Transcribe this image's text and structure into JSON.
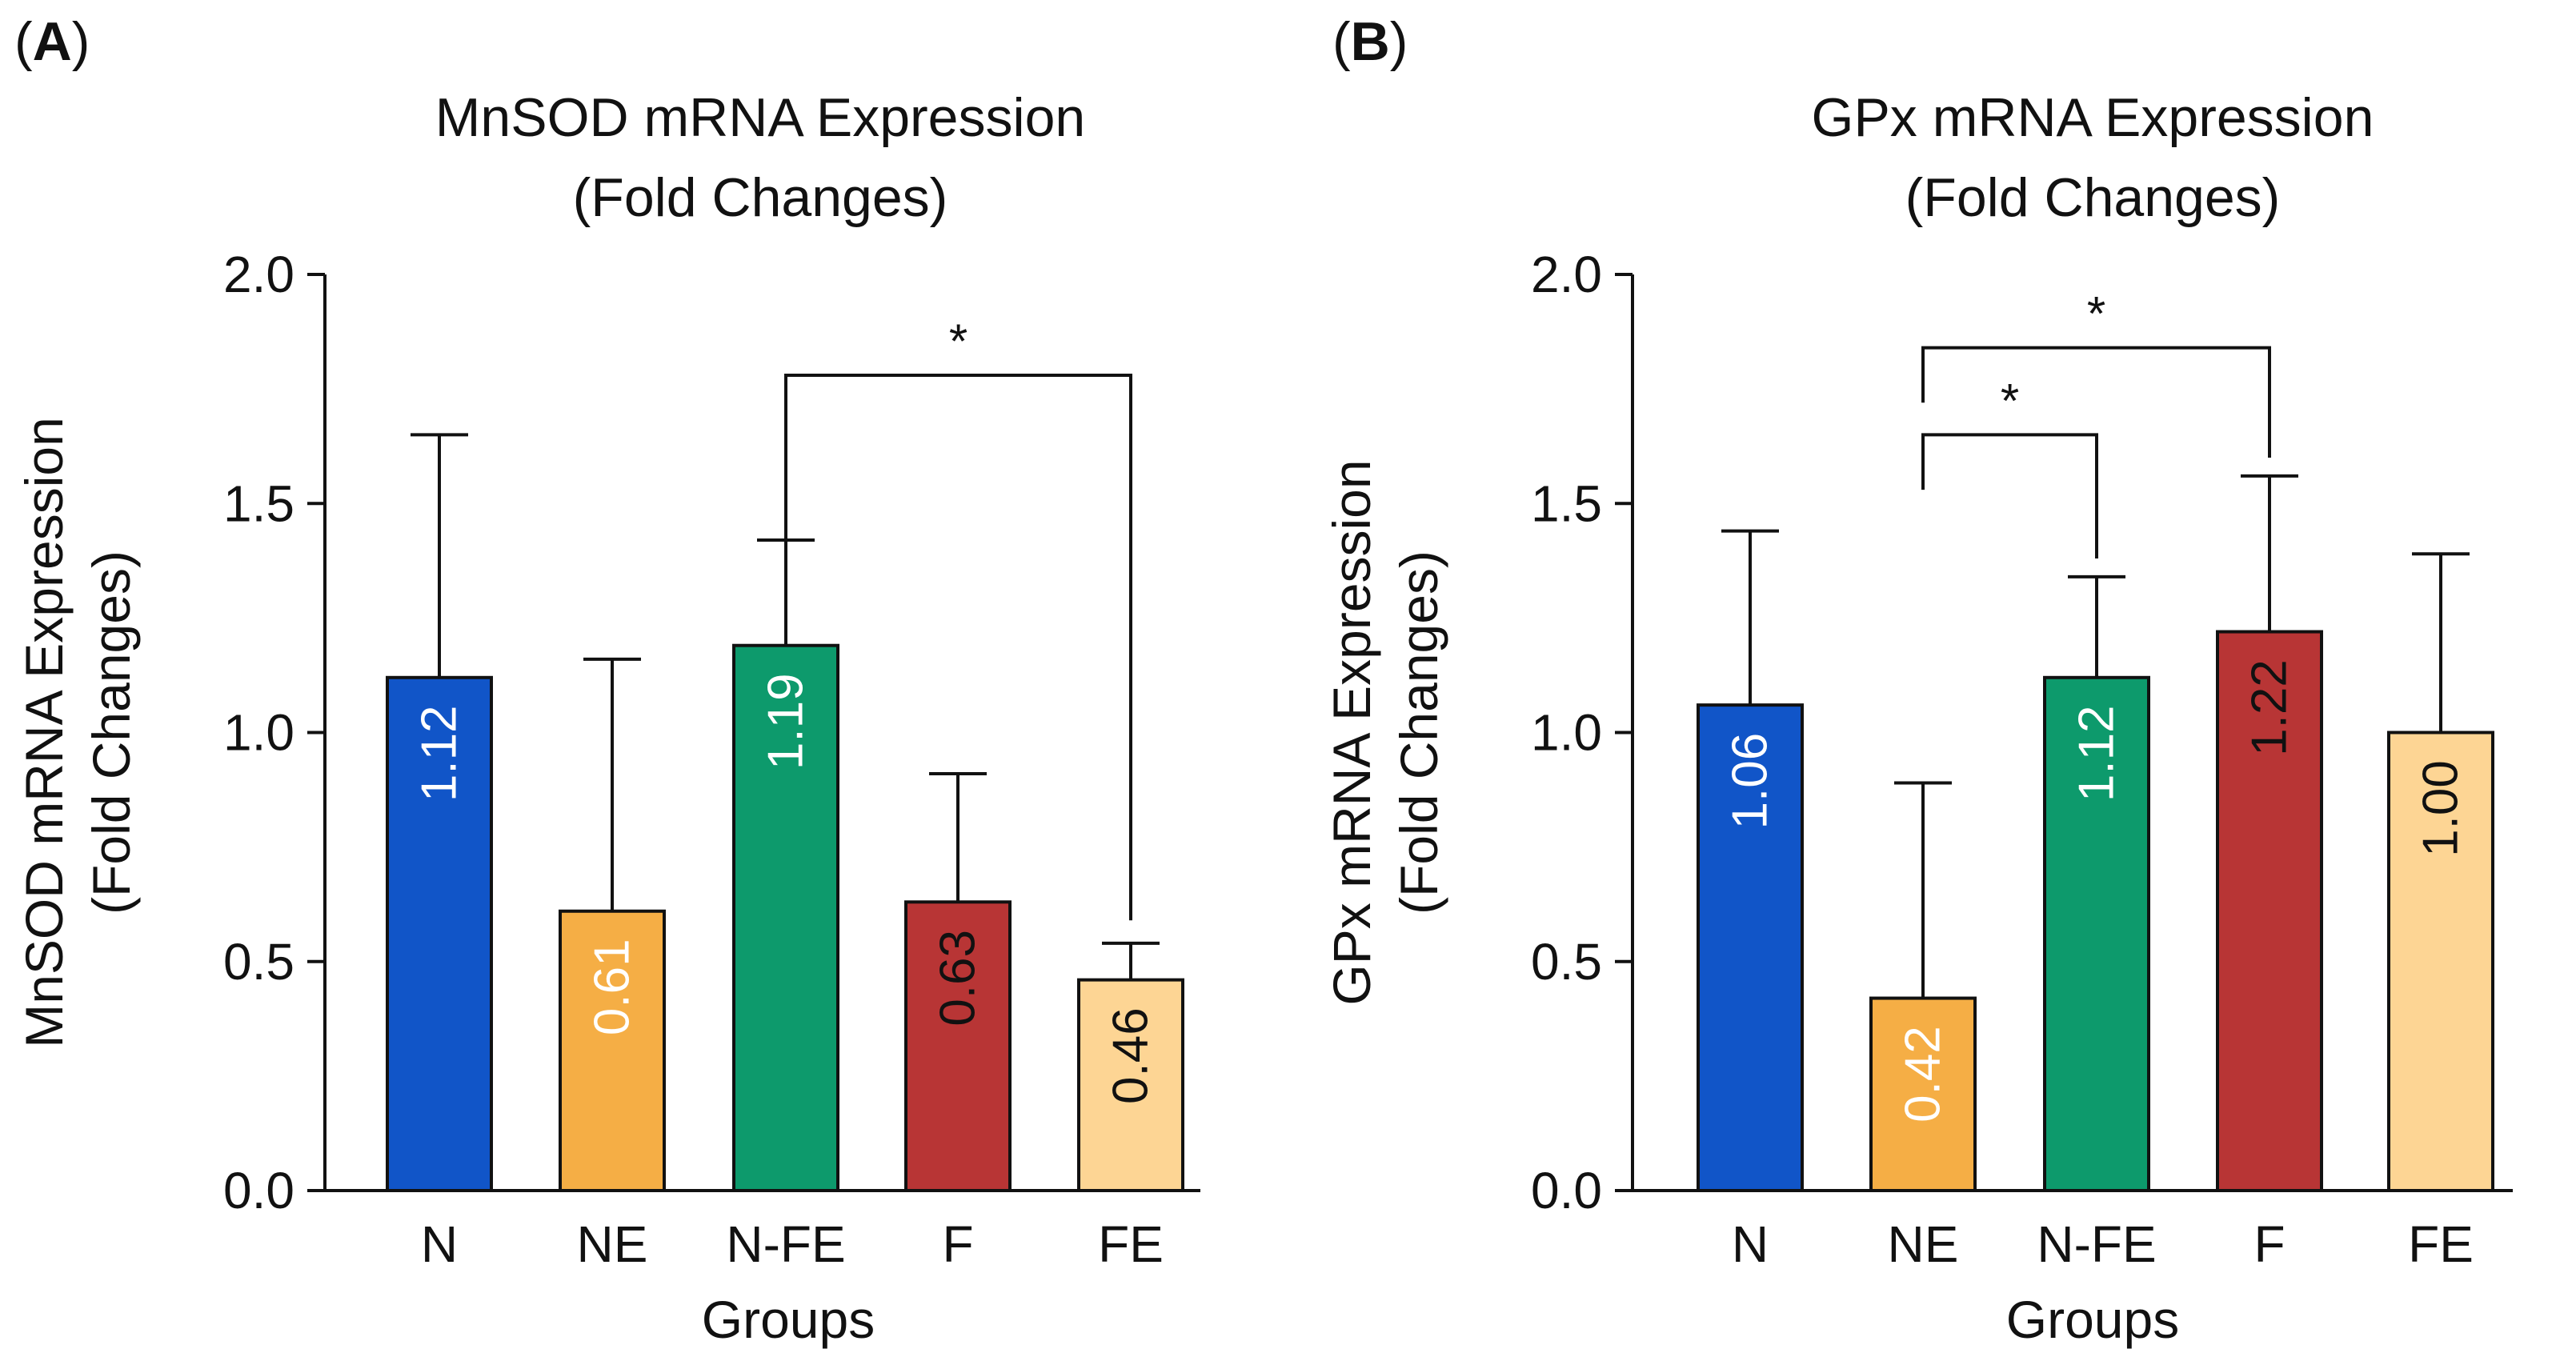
{
  "chart_data": [
    {
      "type": "bar",
      "panel_label": "A",
      "title_lines": [
        "MnSOD mRNA Expression",
        "(Fold Changes)"
      ],
      "ylabel_lines": [
        "MnSOD mRNA Expression",
        "(Fold Changes)"
      ],
      "xlabel": "Groups",
      "categories": [
        "N",
        "NE",
        "N-FE",
        "F",
        "FE"
      ],
      "values": [
        1.12,
        0.61,
        1.19,
        0.63,
        0.46
      ],
      "value_labels": [
        "1.12",
        "0.61",
        "1.19",
        "0.63",
        "0.46"
      ],
      "error_upper": [
        1.65,
        1.16,
        1.42,
        0.91,
        0.54
      ],
      "colors": [
        "#1155c8",
        "#f5ae45",
        "#0d9a6c",
        "#b83535",
        "#fdd594"
      ],
      "label_colors": [
        "#ffffff",
        "#ffffff",
        "#ffffff",
        "#111111",
        "#111111"
      ],
      "ylim": [
        0,
        2.0
      ],
      "yticks": [
        0.0,
        0.5,
        1.0,
        1.5,
        2.0
      ],
      "ytick_labels": [
        "0.0",
        "0.5",
        "1.0",
        "1.5",
        "2.0"
      ],
      "significance": [
        {
          "from": 2,
          "to": 4,
          "level": 1.78,
          "left_drop": 1.42,
          "right_drop": 0.59,
          "label": "*"
        }
      ]
    },
    {
      "type": "bar",
      "panel_label": "B",
      "title_lines": [
        "GPx mRNA Expression",
        "(Fold Changes)"
      ],
      "ylabel_lines": [
        "GPx mRNA Expression",
        "(Fold Changes)"
      ],
      "xlabel": "Groups",
      "categories": [
        "N",
        "NE",
        "N-FE",
        "F",
        "FE"
      ],
      "values": [
        1.06,
        0.42,
        1.12,
        1.22,
        1.0
      ],
      "value_labels": [
        "1.06",
        "0.42",
        "1.12",
        "1.22",
        "1.00"
      ],
      "error_upper": [
        1.44,
        0.89,
        1.34,
        1.56,
        1.39
      ],
      "colors": [
        "#1155c8",
        "#f5ae45",
        "#0d9a6c",
        "#b83535",
        "#fdd594"
      ],
      "label_colors": [
        "#ffffff",
        "#ffffff",
        "#ffffff",
        "#111111",
        "#111111"
      ],
      "ylim": [
        0,
        2.0
      ],
      "yticks": [
        0.0,
        0.5,
        1.0,
        1.5,
        2.0
      ],
      "ytick_labels": [
        "0.0",
        "0.5",
        "1.0",
        "1.5",
        "2.0"
      ],
      "significance": [
        {
          "from": 1,
          "to": 3,
          "level": 1.84,
          "left_drop": 1.72,
          "right_drop": 1.6,
          "label": "*"
        },
        {
          "from": 1,
          "to": 2,
          "level": 1.65,
          "left_drop": 1.53,
          "right_drop": 1.38,
          "label": "*"
        }
      ]
    }
  ]
}
